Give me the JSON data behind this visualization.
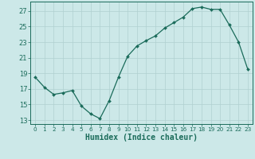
{
  "x": [
    0,
    1,
    2,
    3,
    4,
    5,
    6,
    7,
    8,
    9,
    10,
    11,
    12,
    13,
    14,
    15,
    16,
    17,
    18,
    19,
    20,
    21,
    22,
    23
  ],
  "y": [
    18.5,
    17.2,
    16.3,
    16.5,
    16.8,
    14.8,
    13.8,
    13.2,
    15.5,
    18.5,
    21.2,
    22.5,
    23.2,
    23.8,
    24.8,
    25.5,
    26.2,
    27.3,
    27.5,
    27.2,
    27.2,
    25.2,
    23.0,
    19.5
  ],
  "line_color": "#1a6b5a",
  "marker": "D",
  "marker_size": 2.0,
  "bg_color": "#cce8e8",
  "grid_color": "#b0d0d0",
  "xlabel": "Humidex (Indice chaleur)",
  "xlim": [
    -0.5,
    23.5
  ],
  "ylim": [
    12.5,
    28.2
  ],
  "yticks": [
    13,
    15,
    17,
    19,
    21,
    23,
    25,
    27
  ],
  "xticks": [
    0,
    1,
    2,
    3,
    4,
    5,
    6,
    7,
    8,
    9,
    10,
    11,
    12,
    13,
    14,
    15,
    16,
    17,
    18,
    19,
    20,
    21,
    22,
    23
  ],
  "tick_color": "#1a6b5a",
  "axis_color": "#1a6b5a",
  "ytick_fontsize": 6.0,
  "xtick_fontsize": 5.2,
  "xlabel_fontsize": 7.0,
  "linewidth": 0.9
}
